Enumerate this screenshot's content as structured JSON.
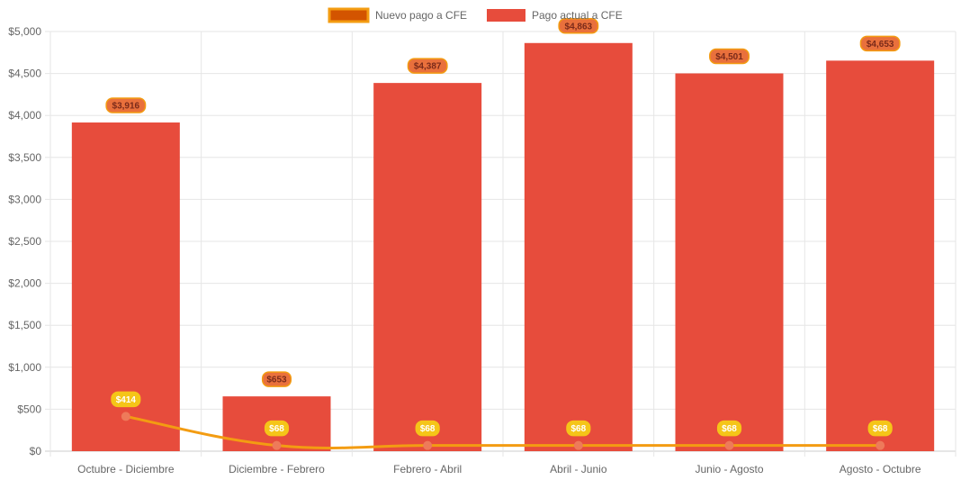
{
  "chart_data": {
    "type": "bar",
    "categories": [
      "Octubre - Diciembre",
      "Diciembre - Febrero",
      "Febrero - Abril",
      "Abril - Junio",
      "Junio - Agosto",
      "Agosto - Octubre"
    ],
    "series": [
      {
        "name": "Nuevo pago a CFE",
        "type": "line",
        "values": [
          414,
          68,
          68,
          68,
          68,
          68
        ],
        "labels": [
          "$414",
          "$68",
          "$68",
          "$68",
          "$68",
          "$68"
        ],
        "color": "#f39c12"
      },
      {
        "name": "Pago actual a CFE",
        "type": "bar",
        "values": [
          3916,
          653,
          4387,
          4863,
          4501,
          4653
        ],
        "labels": [
          "$3,916",
          "$653",
          "$4,387",
          "$4,863",
          "$4,501",
          "$4,653"
        ],
        "color": "#e74c3c"
      }
    ],
    "ylim": [
      0,
      5000
    ],
    "yticks": [
      "$0",
      "$500",
      "$1,000",
      "$1,500",
      "$2,000",
      "$2,500",
      "$3,000",
      "$3,500",
      "$4,000",
      "$4,500",
      "$5,000"
    ],
    "legend_position": "top",
    "grid": true,
    "colors": {
      "bar": "#e74c3c",
      "line": "#f39c12",
      "line_point": "#ee7a5a",
      "bar_label_bg": "#e9703c",
      "bar_label_border": "#f39c12",
      "bar_label_text": "#7a2a1a",
      "line_label_bg": "#f5c518",
      "line_label_text": "#ffffff",
      "legend_line_box": "#d35400",
      "grid": "#e6e6e6"
    }
  }
}
